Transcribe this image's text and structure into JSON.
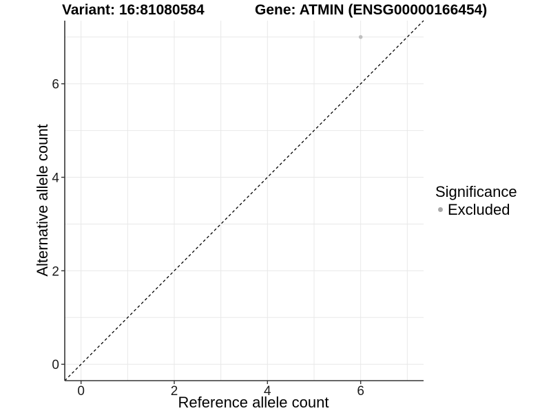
{
  "chart_data": {
    "type": "scatter",
    "title_left": "Variant: 16:81080584",
    "title_right": "Gene: ATMIN (ENSG00000166454)",
    "xlabel": "Reference allele count",
    "ylabel": "Alternative allele count",
    "xlim": [
      -0.35,
      7.35
    ],
    "ylim": [
      -0.35,
      7.35
    ],
    "x_ticks": [
      0,
      2,
      4,
      6
    ],
    "y_ticks": [
      0,
      2,
      4,
      6
    ],
    "grid_lines": [
      0,
      1,
      2,
      3,
      4,
      5,
      6,
      7
    ],
    "grid": "on",
    "legend_position": "right",
    "series": [
      {
        "name": "Excluded",
        "color": "#bfbfbf",
        "points": [
          {
            "x": 6,
            "y": 7
          }
        ]
      }
    ],
    "abline": {
      "slope": 1,
      "intercept": 0,
      "linetype": "dashed",
      "color": "#000000"
    }
  },
  "legend": {
    "title": "Significance",
    "items": [
      {
        "label": "Excluded",
        "color": "#a9a9a9",
        "marker": "circle"
      }
    ]
  },
  "colors": {
    "grid": "#e8e8e8",
    "axis": "#333333",
    "tick_text": "#1a1a1a"
  }
}
